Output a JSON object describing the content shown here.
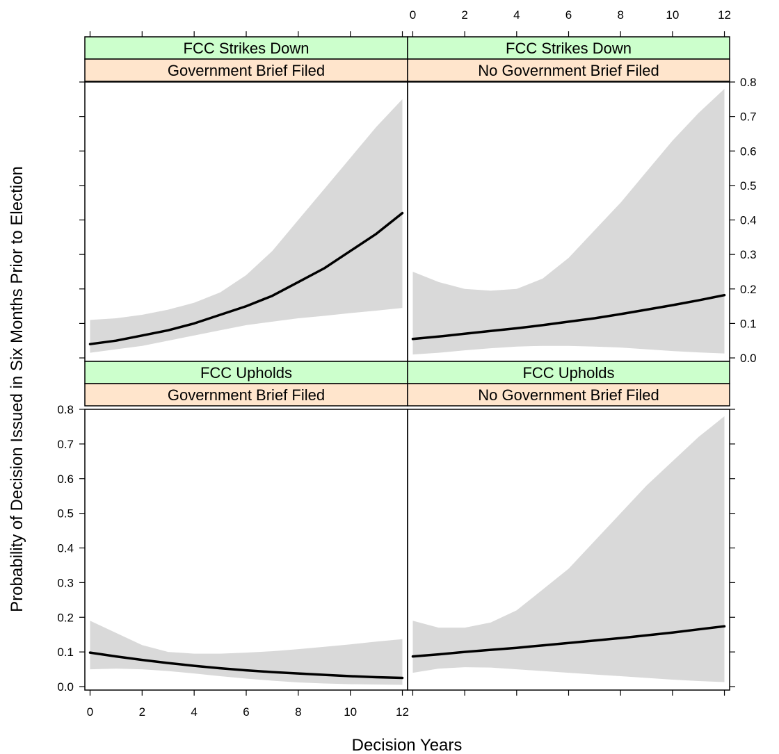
{
  "chart_data": {
    "type": "line",
    "layout": "2x2 trellis",
    "xlabel": "Decision Years",
    "ylabel": "Probability of Decision Issued in Six Months Prior to Election",
    "xlim": [
      -0.2,
      12.2
    ],
    "ylim": [
      -0.01,
      0.8
    ],
    "x_ticks": [
      "0",
      "2",
      "4",
      "6",
      "8",
      "10",
      "12"
    ],
    "y_ticks": [
      "0.0",
      "0.1",
      "0.2",
      "0.3",
      "0.4",
      "0.5",
      "0.6",
      "0.7",
      "0.8"
    ],
    "colors": {
      "strip_outcome": "#ccffcc",
      "strip_brief": "#ffe5cc",
      "band": "#d9d9d9",
      "line": "#000000"
    },
    "x": [
      0,
      1,
      2,
      3,
      4,
      5,
      6,
      7,
      8,
      9,
      10,
      11,
      12
    ],
    "panels": [
      {
        "outcome": "FCC Strikes Down",
        "brief": "Government Brief Filed",
        "fit": [
          0.04,
          0.05,
          0.065,
          0.08,
          0.1,
          0.125,
          0.15,
          0.18,
          0.22,
          0.26,
          0.31,
          0.36,
          0.42
        ],
        "lower": [
          0.015,
          0.025,
          0.035,
          0.05,
          0.065,
          0.08,
          0.095,
          0.105,
          0.115,
          0.122,
          0.13,
          0.137,
          0.145
        ],
        "upper": [
          0.11,
          0.115,
          0.125,
          0.14,
          0.16,
          0.19,
          0.24,
          0.31,
          0.4,
          0.49,
          0.58,
          0.67,
          0.75
        ]
      },
      {
        "outcome": "FCC Strikes Down",
        "brief": "No Government Brief Filed",
        "fit": [
          0.055,
          0.062,
          0.07,
          0.078,
          0.086,
          0.095,
          0.105,
          0.115,
          0.127,
          0.14,
          0.153,
          0.167,
          0.182
        ],
        "lower": [
          0.01,
          0.015,
          0.022,
          0.028,
          0.033,
          0.035,
          0.035,
          0.033,
          0.03,
          0.025,
          0.02,
          0.016,
          0.013
        ],
        "upper": [
          0.25,
          0.22,
          0.2,
          0.195,
          0.2,
          0.23,
          0.29,
          0.37,
          0.45,
          0.54,
          0.63,
          0.71,
          0.78
        ]
      },
      {
        "outcome": "FCC Upholds",
        "brief": "Government Brief Filed",
        "fit": [
          0.098,
          0.087,
          0.077,
          0.068,
          0.06,
          0.053,
          0.047,
          0.042,
          0.038,
          0.034,
          0.03,
          0.027,
          0.025
        ],
        "lower": [
          0.05,
          0.052,
          0.05,
          0.045,
          0.038,
          0.03,
          0.023,
          0.017,
          0.012,
          0.009,
          0.007,
          0.006,
          0.005
        ],
        "upper": [
          0.19,
          0.155,
          0.12,
          0.1,
          0.095,
          0.095,
          0.098,
          0.102,
          0.108,
          0.115,
          0.122,
          0.13,
          0.137
        ]
      },
      {
        "outcome": "FCC Upholds",
        "brief": "No Government Brief Filed",
        "fit": [
          0.087,
          0.093,
          0.1,
          0.106,
          0.112,
          0.119,
          0.126,
          0.133,
          0.14,
          0.148,
          0.156,
          0.165,
          0.174
        ],
        "lower": [
          0.04,
          0.052,
          0.056,
          0.055,
          0.05,
          0.045,
          0.04,
          0.035,
          0.03,
          0.025,
          0.02,
          0.016,
          0.013
        ],
        "upper": [
          0.19,
          0.17,
          0.17,
          0.185,
          0.22,
          0.28,
          0.34,
          0.42,
          0.5,
          0.58,
          0.65,
          0.72,
          0.78
        ]
      }
    ]
  }
}
